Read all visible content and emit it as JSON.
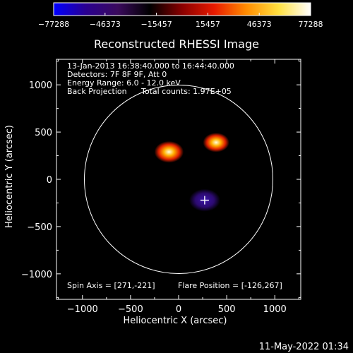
{
  "chart_data": {
    "type": "heatmap",
    "title": "Reconstructed RHESSI Image",
    "xlabel": "Heliocentric X (arcsec)",
    "ylabel": "Heliocentric Y (arcsec)",
    "xlim": [
      -1270,
      1270
    ],
    "ylim": [
      -1270,
      1270
    ],
    "xticks": [
      {
        "value": -1000,
        "label": "−1000"
      },
      {
        "value": -500,
        "label": "−500"
      },
      {
        "value": 0,
        "label": "0"
      },
      {
        "value": 500,
        "label": "500"
      },
      {
        "value": 1000,
        "label": "1000"
      }
    ],
    "yticks": [
      {
        "value": 1000,
        "label": "1000"
      },
      {
        "value": 500,
        "label": "500"
      },
      {
        "value": 0,
        "label": "0"
      },
      {
        "value": -500,
        "label": "−500"
      },
      {
        "value": -1000,
        "label": "−1000"
      }
    ],
    "colorbar": {
      "min": -77288,
      "max": 77288,
      "ticks": [
        {
          "value": -77288,
          "label": "−77288"
        },
        {
          "value": -46373,
          "label": "−46373"
        },
        {
          "value": -15457,
          "label": "−15457"
        },
        {
          "value": 15457,
          "label": "15457"
        },
        {
          "value": 46373,
          "label": "46373"
        },
        {
          "value": 77288,
          "label": "77288"
        }
      ],
      "colors": [
        "#0000ff",
        "#2a0090",
        "#3a0a5c",
        "#000000",
        "#8a0000",
        "#e81a00",
        "#ff8c00",
        "#ffe040",
        "#ffffff"
      ]
    },
    "info": {
      "time_range": "13-Jan-2013 16:38:40.000 to 16:44:40.000",
      "detectors": "Detectors: 7F 8F 9F, Att 0",
      "energy_range": "Energy Range: 6.0 - 12.0 keV",
      "method": "Back Projection",
      "counts": "Total counts: 1.97E+05"
    },
    "footer": {
      "spin_axis": "Spin Axis = [271,-221]",
      "flare_position": "Flare Position = [-126,267]"
    },
    "solar_limb": {
      "center": [
        0,
        0
      ],
      "radius_arcsec": 980
    },
    "flare_marker": {
      "x": 271,
      "y": -221
    },
    "bright_sources": [
      {
        "x": -100,
        "y": 290,
        "peak_value": 77288
      },
      {
        "x": 390,
        "y": 390,
        "peak_value": 60000
      }
    ]
  },
  "timestamp": "11-May-2022 01:34"
}
